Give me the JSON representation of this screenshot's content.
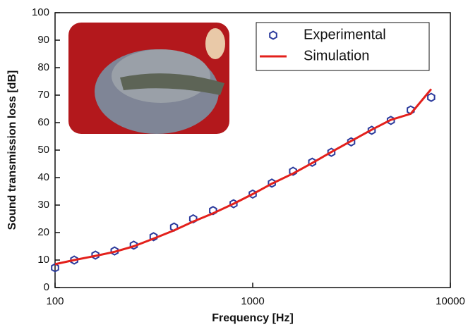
{
  "chart_data": {
    "type": "line",
    "xlabel": "Frequency [Hz]",
    "ylabel": "Sound transmission loss [dB]",
    "x": [
      100,
      125,
      160,
      200,
      250,
      315,
      400,
      500,
      630,
      800,
      1000,
      1250,
      1600,
      2000,
      2500,
      3150,
      4000,
      5000,
      6300,
      8000
    ],
    "series": [
      {
        "name": "Experimental",
        "color": "#2b3a9c",
        "style": "hexagon-marker",
        "values": [
          7.2,
          10,
          11.8,
          13.3,
          15.4,
          18.5,
          22,
          25,
          28,
          30.5,
          34,
          38,
          42.3,
          45.6,
          49.2,
          53,
          57.2,
          60.8,
          64.6,
          69.2
        ]
      },
      {
        "name": "Simulation",
        "color": "#e3201b",
        "style": "line",
        "values": [
          8.5,
          10,
          11.5,
          13,
          15,
          17.8,
          20.8,
          24,
          27,
          30.5,
          34,
          37.8,
          41.5,
          45.3,
          49.3,
          53.3,
          57.4,
          61,
          63.2,
          72.2
        ]
      }
    ],
    "xscale": "log",
    "xlim": [
      100,
      10000
    ],
    "xticks": [
      100,
      1000,
      10000
    ],
    "ylim": [
      0,
      100
    ],
    "yticks": [
      0,
      10,
      20,
      30,
      40,
      50,
      60,
      70,
      80,
      90,
      100
    ],
    "legend": "upper right"
  }
}
